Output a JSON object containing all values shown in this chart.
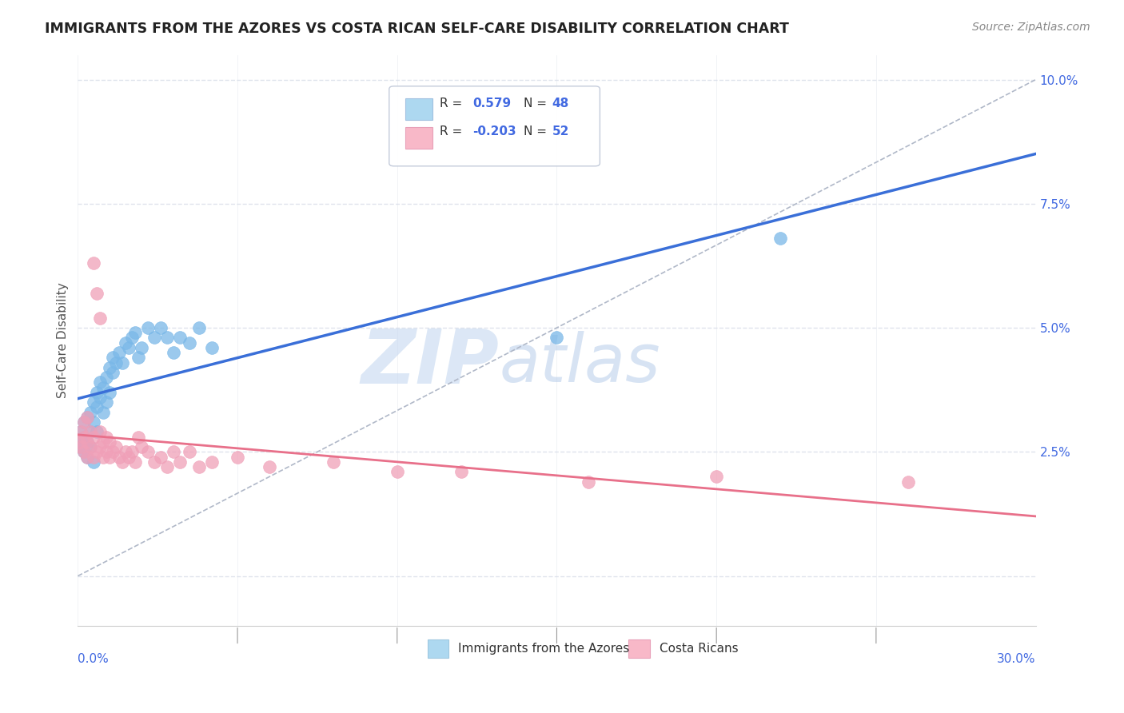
{
  "title": "IMMIGRANTS FROM THE AZORES VS COSTA RICAN SELF-CARE DISABILITY CORRELATION CHART",
  "source": "Source: ZipAtlas.com",
  "ylabel": "Self-Care Disability",
  "series": [
    {
      "name": "Immigrants from the Azores",
      "R": 0.579,
      "N": 48,
      "color": "#7ab8e8",
      "x": [
        0.0005,
        0.001,
        0.001,
        0.002,
        0.002,
        0.002,
        0.003,
        0.003,
        0.003,
        0.004,
        0.004,
        0.004,
        0.005,
        0.005,
        0.005,
        0.006,
        0.006,
        0.006,
        0.007,
        0.007,
        0.008,
        0.008,
        0.009,
        0.009,
        0.01,
        0.01,
        0.011,
        0.011,
        0.012,
        0.013,
        0.014,
        0.015,
        0.016,
        0.017,
        0.018,
        0.019,
        0.02,
        0.022,
        0.024,
        0.026,
        0.028,
        0.03,
        0.032,
        0.035,
        0.038,
        0.042,
        0.15,
        0.22
      ],
      "y": [
        0.027,
        0.026,
        0.029,
        0.028,
        0.025,
        0.031,
        0.027,
        0.032,
        0.024,
        0.029,
        0.033,
        0.026,
        0.031,
        0.035,
        0.023,
        0.034,
        0.037,
        0.029,
        0.036,
        0.039,
        0.038,
        0.033,
        0.04,
        0.035,
        0.042,
        0.037,
        0.041,
        0.044,
        0.043,
        0.045,
        0.043,
        0.047,
        0.046,
        0.048,
        0.049,
        0.044,
        0.046,
        0.05,
        0.048,
        0.05,
        0.048,
        0.045,
        0.048,
        0.047,
        0.05,
        0.046,
        0.048,
        0.068
      ]
    },
    {
      "name": "Costa Ricans",
      "R": -0.203,
      "N": 52,
      "color": "#f0a0b8",
      "x": [
        0.0005,
        0.001,
        0.001,
        0.002,
        0.002,
        0.002,
        0.003,
        0.003,
        0.003,
        0.004,
        0.004,
        0.005,
        0.005,
        0.005,
        0.006,
        0.006,
        0.007,
        0.007,
        0.007,
        0.008,
        0.008,
        0.009,
        0.009,
        0.01,
        0.01,
        0.011,
        0.012,
        0.013,
        0.014,
        0.015,
        0.016,
        0.017,
        0.018,
        0.019,
        0.02,
        0.022,
        0.024,
        0.026,
        0.028,
        0.03,
        0.032,
        0.035,
        0.038,
        0.042,
        0.05,
        0.06,
        0.08,
        0.1,
        0.12,
        0.16,
        0.2,
        0.26
      ],
      "y": [
        0.027,
        0.026,
        0.029,
        0.028,
        0.025,
        0.031,
        0.027,
        0.032,
        0.024,
        0.029,
        0.026,
        0.028,
        0.063,
        0.024,
        0.025,
        0.057,
        0.026,
        0.029,
        0.052,
        0.024,
        0.027,
        0.025,
        0.028,
        0.027,
        0.024,
        0.025,
        0.026,
        0.024,
        0.023,
        0.025,
        0.024,
        0.025,
        0.023,
        0.028,
        0.026,
        0.025,
        0.023,
        0.024,
        0.022,
        0.025,
        0.023,
        0.025,
        0.022,
        0.023,
        0.024,
        0.022,
        0.023,
        0.021,
        0.021,
        0.019,
        0.02,
        0.019
      ]
    }
  ],
  "xlim": [
    0.0,
    0.3
  ],
  "ylim": [
    -0.01,
    0.105
  ],
  "ytick_positions": [
    0.0,
    0.025,
    0.05,
    0.075,
    0.1
  ],
  "ytick_labels": [
    "",
    "2.5%",
    "5.0%",
    "7.5%",
    "10.0%"
  ],
  "xtick_positions": [
    0.0,
    0.05,
    0.1,
    0.15,
    0.2,
    0.25,
    0.3
  ],
  "background_color": "#ffffff",
  "grid_color": "#d8dde8",
  "grid_style": "dashed",
  "legend_box_color": "#4169e1",
  "legend_value_color": "#4169e1",
  "watermark_zip_color": "#c5d8f0",
  "watermark_atlas_color": "#b0c8e8",
  "dashed_line_color": "#b0b8c8",
  "title_color": "#222222",
  "source_color": "#888888",
  "ylabel_color": "#555555",
  "ytick_color": "#4169e1",
  "xtick_color": "#4169e1"
}
